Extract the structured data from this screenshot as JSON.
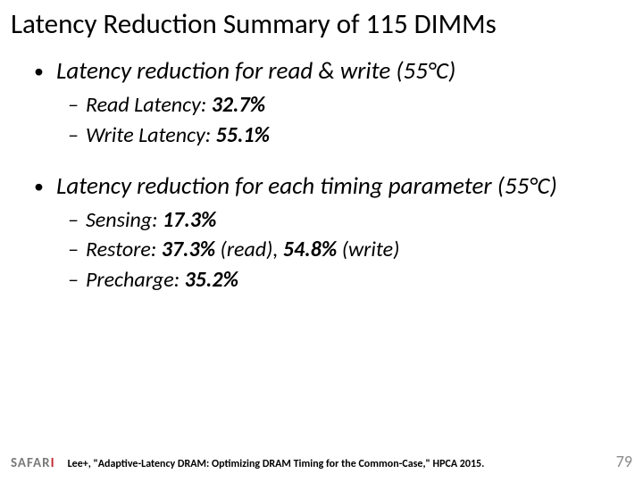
{
  "title": "Latency Reduction Summary of 115 DIMMs",
  "section1": {
    "heading": "Latency reduction for read & write (55°C)",
    "items": [
      {
        "label": "Read Latency: ",
        "value": "32.7%"
      },
      {
        "label": "Write Latency: ",
        "value": "55.1%"
      }
    ]
  },
  "section2": {
    "heading": "Latency reduction for each timing parameter (55°C)",
    "items": [
      {
        "label": "Sensing: ",
        "value": "17.3%",
        "tail": ""
      },
      {
        "label": "Restore: ",
        "value": "37.3%",
        "mid": " (read), ",
        "value2": "54.8%",
        "tail": " (write)"
      },
      {
        "label": "Precharge: ",
        "value": "35.2%",
        "tail": ""
      }
    ]
  },
  "footer": {
    "logo_prefix": "SAFAR",
    "logo_suffix": "I",
    "citation": "Lee+, \"Adaptive-Latency DRAM: Optimizing DRAM Timing for the Common-Case,\" HPCA 2015.",
    "page": "79"
  }
}
